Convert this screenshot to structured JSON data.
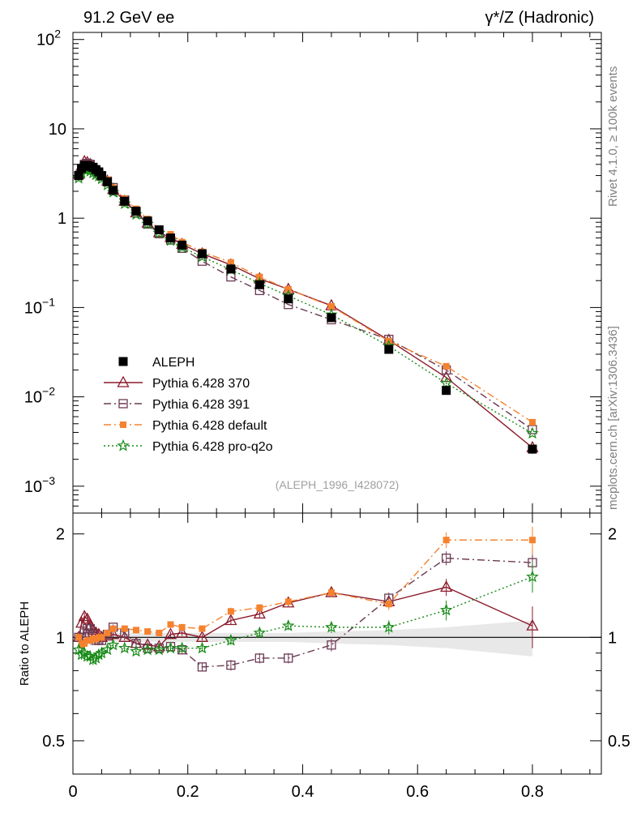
{
  "header": {
    "left_title": "91.2 GeV ee",
    "right_title": "γ*/Z (Hadronic)"
  },
  "side_labels": {
    "rivet": "Rivet 4.1.0, ≥ 100k events",
    "mcplots": "mcplots.cern.ch [arXiv:1306.3436]"
  },
  "analysis_label": "(ALEPH_1996_I428072)",
  "colors": {
    "aleph": "#000000",
    "p370": "#8b1a2b",
    "p391": "#6b3a53",
    "default": "#f5822f",
    "proq2o": "#178a17"
  },
  "chart_data": [
    {
      "type": "scatter",
      "panel": "main",
      "yscale": "log",
      "xlim": [
        0,
        0.92
      ],
      "ylim": [
        0.0005,
        120
      ],
      "xticks": [
        0,
        0.2,
        0.4,
        0.6,
        0.8
      ],
      "ytick_labels": [
        {
          "value": 100,
          "base": "10",
          "exp": "2"
        },
        {
          "value": 10,
          "base": "10",
          "exp": ""
        },
        {
          "value": 1,
          "base": "1",
          "exp": ""
        },
        {
          "value": 0.1,
          "base": "10",
          "exp": "−1"
        },
        {
          "value": 0.01,
          "base": "10",
          "exp": "−2"
        },
        {
          "value": 0.001,
          "base": "10",
          "exp": "−3"
        }
      ],
      "x": [
        0.01,
        0.015,
        0.02,
        0.025,
        0.03,
        0.035,
        0.04,
        0.045,
        0.05,
        0.06,
        0.07,
        0.09,
        0.11,
        0.13,
        0.15,
        0.17,
        0.19,
        0.225,
        0.275,
        0.325,
        0.375,
        0.45,
        0.55,
        0.65,
        0.8
      ],
      "series": [
        {
          "name": "ALEPH",
          "key": "aleph",
          "marker": "filled-square",
          "line": "none",
          "values": [
            3.0,
            3.6,
            3.9,
            3.9,
            3.8,
            3.7,
            3.5,
            3.3,
            3.0,
            2.55,
            2.05,
            1.55,
            1.2,
            0.93,
            0.74,
            0.6,
            0.5,
            0.4,
            0.27,
            0.18,
            0.125,
            0.077,
            0.034,
            0.0118,
            0.0026
          ],
          "err": [
            0.1,
            0.1,
            0.1,
            0.1,
            0.1,
            0.1,
            0.1,
            0.1,
            0.08,
            0.06,
            0.05,
            0.04,
            0.03,
            0.02,
            0.02,
            0.015,
            0.012,
            0.01,
            0.007,
            0.005,
            0.004,
            0.003,
            0.0015,
            0.0008,
            0.0003
          ]
        },
        {
          "name": "Pythia 6.428 370",
          "key": "p370",
          "marker": "open-triangle",
          "line": "solid",
          "values": [
            3.1,
            3.8,
            4.3,
            4.2,
            4.0,
            3.8,
            3.55,
            3.3,
            3.05,
            2.6,
            2.1,
            1.55,
            1.15,
            0.88,
            0.69,
            0.61,
            0.51,
            0.4,
            0.3,
            0.21,
            0.16,
            0.105,
            0.043,
            0.0165,
            0.0027
          ],
          "err": []
        },
        {
          "name": "Pythia 6.428 391",
          "key": "p391",
          "marker": "open-square",
          "line": "dashdot",
          "values": [
            3.0,
            3.6,
            4.0,
            4.1,
            4.0,
            3.7,
            3.4,
            3.2,
            2.95,
            2.6,
            2.2,
            1.6,
            1.15,
            0.86,
            0.67,
            0.57,
            0.46,
            0.33,
            0.22,
            0.155,
            0.108,
            0.073,
            0.044,
            0.02,
            0.0043
          ],
          "err": []
        },
        {
          "name": "Pythia 6.428 default",
          "key": "default",
          "marker": "filled-square-small",
          "line": "dashdot",
          "values": [
            3.0,
            3.4,
            3.7,
            3.8,
            3.7,
            3.6,
            3.45,
            3.3,
            3.1,
            2.7,
            2.2,
            1.65,
            1.27,
            0.98,
            0.76,
            0.66,
            0.54,
            0.42,
            0.32,
            0.22,
            0.16,
            0.103,
            0.042,
            0.022,
            0.0052
          ],
          "err": []
        },
        {
          "name": "Pythia 6.428 pro-q2o",
          "key": "proq2o",
          "marker": "star",
          "line": "dotted",
          "values": [
            2.8,
            3.2,
            3.5,
            3.45,
            3.35,
            3.2,
            3.05,
            2.95,
            2.75,
            2.35,
            1.95,
            1.45,
            1.1,
            0.86,
            0.68,
            0.56,
            0.47,
            0.37,
            0.265,
            0.186,
            0.135,
            0.083,
            0.037,
            0.0142,
            0.0039
          ],
          "err": []
        }
      ]
    },
    {
      "type": "scatter",
      "panel": "ratio",
      "ylabel": "Ratio to ALEPH",
      "xlim": [
        0,
        0.92
      ],
      "ylim": [
        0.4,
        2.3
      ],
      "xtick_labels": [
        "0",
        "0.2",
        "0.4",
        "0.6",
        "0.8"
      ],
      "ytick_labels": [
        "0.5",
        "1",
        "2"
      ],
      "x": [
        0.01,
        0.015,
        0.02,
        0.025,
        0.03,
        0.035,
        0.04,
        0.045,
        0.05,
        0.06,
        0.07,
        0.09,
        0.11,
        0.13,
        0.15,
        0.17,
        0.19,
        0.225,
        0.275,
        0.325,
        0.375,
        0.45,
        0.55,
        0.65,
        0.8
      ],
      "band": {
        "values": [
          0.04,
          0.04,
          0.04,
          0.04,
          0.04,
          0.04,
          0.04,
          0.04,
          0.03,
          0.03,
          0.03,
          0.03,
          0.03,
          0.03,
          0.03,
          0.03,
          0.03,
          0.03,
          0.03,
          0.03,
          0.03,
          0.04,
          0.05,
          0.07,
          0.12
        ]
      },
      "series": [
        {
          "name": "Pythia 6.428 370",
          "key": "p370",
          "marker": "open-triangle",
          "line": "solid",
          "values": [
            1.0,
            1.1,
            1.15,
            1.13,
            1.08,
            1.05,
            1.03,
            1.02,
            1.0,
            1.01,
            1.02,
            1.0,
            0.96,
            0.95,
            0.94,
            1.02,
            1.03,
            1.0,
            1.12,
            1.17,
            1.26,
            1.35,
            1.27,
            1.4,
            1.08
          ],
          "err": [
            0.03,
            0.03,
            0.03,
            0.03,
            0.03,
            0.03,
            0.03,
            0.03,
            0.03,
            0.02,
            0.02,
            0.02,
            0.02,
            0.02,
            0.02,
            0.02,
            0.02,
            0.02,
            0.03,
            0.03,
            0.03,
            0.04,
            0.05,
            0.08,
            0.15
          ]
        },
        {
          "name": "Pythia 6.428 391",
          "key": "p391",
          "marker": "open-square",
          "line": "dashdot",
          "values": [
            1.0,
            1.0,
            1.03,
            1.06,
            1.06,
            1.02,
            0.98,
            0.98,
            0.98,
            1.02,
            1.07,
            1.03,
            0.96,
            0.93,
            0.93,
            0.94,
            0.92,
            0.82,
            0.83,
            0.87,
            0.87,
            0.95,
            1.3,
            1.7,
            1.65
          ],
          "err": [
            0.03,
            0.03,
            0.03,
            0.03,
            0.03,
            0.03,
            0.03,
            0.03,
            0.03,
            0.02,
            0.02,
            0.02,
            0.02,
            0.02,
            0.02,
            0.02,
            0.02,
            0.02,
            0.03,
            0.03,
            0.03,
            0.04,
            0.05,
            0.08,
            0.15
          ]
        },
        {
          "name": "Pythia 6.428 default",
          "key": "default",
          "marker": "filled-square-small",
          "line": "dashdot",
          "values": [
            1.0,
            0.95,
            0.96,
            0.98,
            0.98,
            0.99,
            0.99,
            1.0,
            1.0,
            1.03,
            1.06,
            1.06,
            1.05,
            1.04,
            1.03,
            1.09,
            1.07,
            1.06,
            1.19,
            1.22,
            1.27,
            1.35,
            1.25,
            1.92,
            1.92
          ],
          "err": [
            0.03,
            0.03,
            0.03,
            0.03,
            0.03,
            0.03,
            0.03,
            0.03,
            0.03,
            0.02,
            0.02,
            0.02,
            0.02,
            0.02,
            0.02,
            0.02,
            0.02,
            0.02,
            0.03,
            0.03,
            0.03,
            0.04,
            0.05,
            0.1,
            0.18
          ]
        },
        {
          "name": "Pythia 6.428 pro-q2o",
          "key": "proq2o",
          "marker": "star",
          "line": "dotted",
          "values": [
            0.92,
            0.89,
            0.9,
            0.88,
            0.88,
            0.86,
            0.87,
            0.89,
            0.9,
            0.92,
            0.95,
            0.93,
            0.91,
            0.92,
            0.92,
            0.93,
            0.93,
            0.93,
            0.98,
            1.03,
            1.08,
            1.07,
            1.07,
            1.2,
            1.5
          ],
          "err": [
            0.03,
            0.03,
            0.03,
            0.03,
            0.03,
            0.03,
            0.03,
            0.03,
            0.03,
            0.02,
            0.02,
            0.02,
            0.02,
            0.02,
            0.02,
            0.02,
            0.02,
            0.02,
            0.03,
            0.03,
            0.03,
            0.04,
            0.05,
            0.08,
            0.15
          ]
        }
      ]
    }
  ]
}
